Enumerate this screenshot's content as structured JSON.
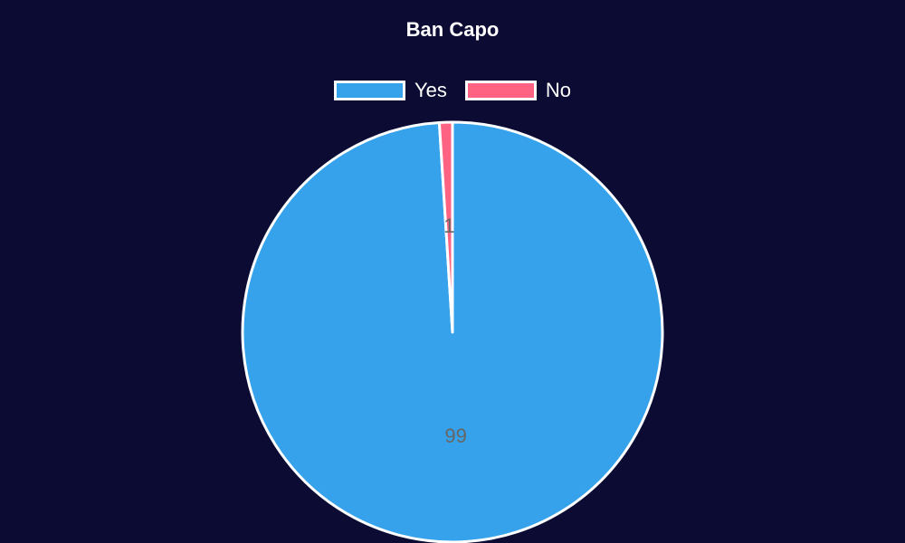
{
  "chart_data": {
    "type": "pie",
    "title": "Ban Capo",
    "categories": [
      "Yes",
      "No"
    ],
    "values": [
      99,
      1
    ],
    "colors": [
      "#36a2eb",
      "#ff6384"
    ],
    "background": "#0b0b33",
    "border_color": "#ffffff",
    "legend_position": "top",
    "data_labels": [
      "99",
      "1"
    ]
  }
}
